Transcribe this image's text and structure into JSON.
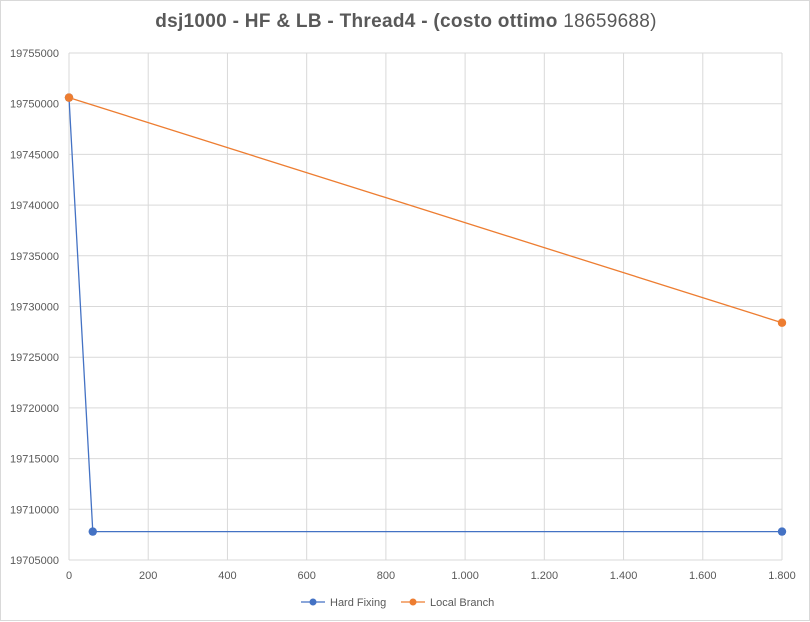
{
  "chart_data": {
    "type": "line",
    "title": "dsj1000 - HF & LB - Thread4 - (costo ottimo",
    "title_value": "18659688)",
    "xlabel": "",
    "ylabel": "",
    "xlim": [
      0,
      1800
    ],
    "ylim": [
      19705000,
      19755000
    ],
    "x_ticks": [
      0,
      200,
      400,
      600,
      800,
      1000,
      1200,
      1400,
      1600,
      1800
    ],
    "x_tick_labels": [
      "0",
      "200",
      "400",
      "600",
      "800",
      "1.000",
      "1.200",
      "1.400",
      "1.600",
      "1.800"
    ],
    "y_ticks": [
      19705000,
      19710000,
      19715000,
      19720000,
      19725000,
      19730000,
      19735000,
      19740000,
      19745000,
      19750000,
      19755000
    ],
    "y_tick_labels": [
      "19705000",
      "19710000",
      "19715000",
      "19720000",
      "19725000",
      "19730000",
      "19735000",
      "19740000",
      "19745000",
      "19750000",
      "19755000"
    ],
    "grid": true,
    "legend_position": "bottom",
    "series": [
      {
        "name": "Hard Fixing",
        "color": "#4472c4",
        "points": [
          [
            0,
            19750600
          ],
          [
            60,
            19707800
          ],
          [
            1800,
            19707800
          ]
        ]
      },
      {
        "name": "Local Branch",
        "color": "#ed7d31",
        "points": [
          [
            0,
            19750600
          ],
          [
            1800,
            19728400
          ]
        ]
      }
    ]
  }
}
